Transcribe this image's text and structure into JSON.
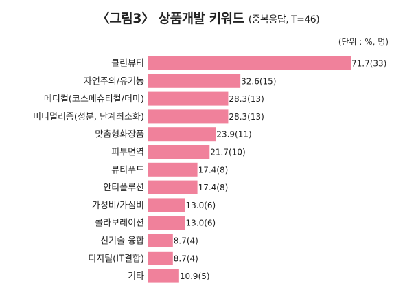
{
  "chart_data": {
    "type": "bar",
    "orientation": "horizontal",
    "title": "〈그림3〉 상품개발 키워드",
    "subtitle": "(중복응답, T=46)",
    "unit_note": "(단위 : %, 명)",
    "categories": [
      "클린뷰티",
      "자연주의/유기농",
      "메디컬(코스메슈티컬/더마)",
      "미니멀리즘(성분, 단계최소화)",
      "맞춤형화장품",
      "피부면역",
      "뷰티푸드",
      "안티폴루션",
      "가성비/가심비",
      "콜라보레이션",
      "신기술 융합",
      "디지털(IT결합)",
      "기타"
    ],
    "values": [
      71.7,
      32.6,
      28.3,
      28.3,
      23.9,
      21.7,
      17.4,
      17.4,
      13.0,
      13.0,
      8.7,
      8.7,
      10.9
    ],
    "value_labels": [
      "71.7(33)",
      "32.6(15)",
      "28.3(13)",
      "28.3(13)",
      "23.9(11)",
      "21.7(10)",
      "17.4(8)",
      "17.4(8)",
      "13.0(6)",
      "13.0(6)",
      "8.7(4)",
      "8.7(4)",
      "10.9(5)"
    ],
    "xlim": [
      0,
      100
    ],
    "grid": false,
    "legend": "none",
    "bar_color": "#f0819b"
  }
}
